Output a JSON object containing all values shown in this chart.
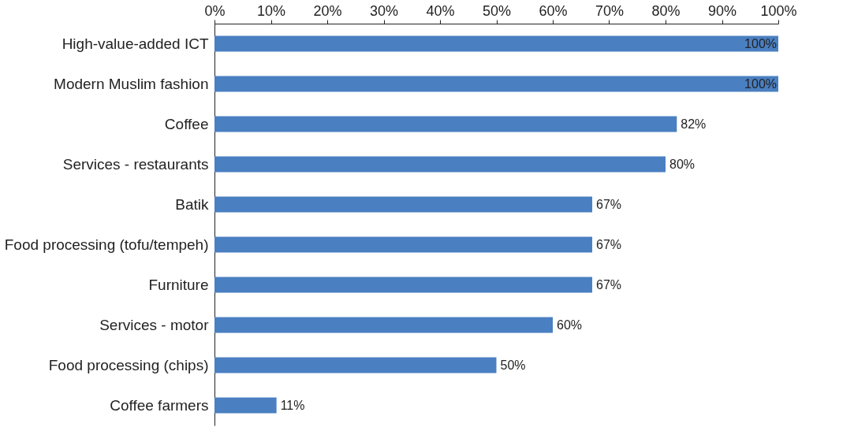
{
  "chart_data": {
    "type": "bar",
    "orientation": "horizontal",
    "categories": [
      "High-value-added ICT",
      "Modern Muslim fashion",
      "Coffee",
      "Services - restaurants",
      "Batik",
      "Food processing (tofu/tempeh)",
      "Furniture",
      "Services - motor",
      "Food processing (chips)",
      "Coffee farmers"
    ],
    "series": [
      {
        "color": "#4a7fc1",
        "values": [
          100,
          100,
          82,
          80,
          67,
          67,
          67,
          60,
          50,
          11
        ],
        "value_labels": [
          "100%",
          "100%",
          "82%",
          "80%",
          "67%",
          "67%",
          "67%",
          "60%",
          "50%",
          "11%"
        ]
      }
    ],
    "xlim": [
      0,
      100
    ],
    "xticks": [
      {
        "value": 0,
        "label": "0%"
      },
      {
        "value": 10,
        "label": "10%"
      },
      {
        "value": 20,
        "label": "20%"
      },
      {
        "value": 30,
        "label": "30%"
      },
      {
        "value": 40,
        "label": "40%"
      },
      {
        "value": 50,
        "label": "50%"
      },
      {
        "value": 60,
        "label": "60%"
      },
      {
        "value": 70,
        "label": "70%"
      },
      {
        "value": 80,
        "label": "80%"
      },
      {
        "value": 90,
        "label": "90%"
      },
      {
        "value": 100,
        "label": "100%"
      }
    ],
    "grid": false
  }
}
